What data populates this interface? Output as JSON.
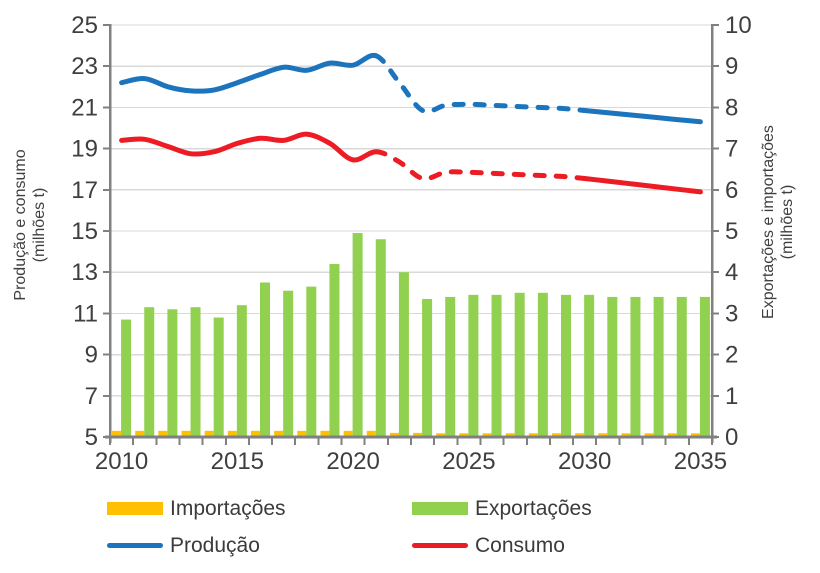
{
  "chart_data": {
    "type": "combo-bar-line",
    "x": [
      2010,
      2011,
      2012,
      2013,
      2014,
      2015,
      2016,
      2017,
      2018,
      2019,
      2020,
      2021,
      2022,
      2023,
      2024,
      2025,
      2026,
      2027,
      2028,
      2029,
      2030,
      2031,
      2032,
      2033,
      2034,
      2035
    ],
    "series": [
      {
        "name": "Importações",
        "type": "bar",
        "axis": "right",
        "color": "#FFC000",
        "values": [
          0.15,
          0.15,
          0.15,
          0.15,
          0.15,
          0.15,
          0.15,
          0.15,
          0.15,
          0.15,
          0.15,
          0.15,
          0.1,
          0.1,
          0.09,
          0.09,
          0.09,
          0.09,
          0.09,
          0.09,
          0.09,
          0.09,
          0.09,
          0.09,
          0.09,
          0.09
        ]
      },
      {
        "name": "Exportações",
        "type": "bar",
        "axis": "right",
        "color": "#92D050",
        "values": [
          2.85,
          3.15,
          3.1,
          3.15,
          2.9,
          3.2,
          3.75,
          3.55,
          3.65,
          4.2,
          4.95,
          4.8,
          4.0,
          3.35,
          3.4,
          3.45,
          3.45,
          3.5,
          3.5,
          3.45,
          3.45,
          3.4,
          3.4,
          3.4,
          3.4,
          3.4
        ]
      },
      {
        "name": "Produção",
        "type": "line",
        "axis": "left",
        "color": "#1C75BC",
        "values": [
          22.2,
          22.4,
          22.0,
          21.8,
          21.85,
          22.2,
          22.6,
          22.95,
          22.8,
          23.15,
          23.05,
          23.5,
          22.2,
          20.85,
          21.1,
          21.15,
          21.1,
          21.05,
          21.0,
          20.95,
          20.85,
          20.74,
          20.63,
          20.52,
          20.41,
          20.3
        ],
        "segments": [
          {
            "from": 2010,
            "to": 2021,
            "dashed": false
          },
          {
            "from": 2021,
            "to": 2030,
            "dashed": true
          },
          {
            "from": 2030,
            "to": 2035,
            "dashed": false
          }
        ]
      },
      {
        "name": "Consumo",
        "type": "line",
        "axis": "left",
        "color": "#ED1C24",
        "values": [
          19.4,
          19.45,
          19.1,
          18.75,
          18.85,
          19.25,
          19.5,
          19.4,
          19.7,
          19.25,
          18.45,
          18.85,
          18.35,
          17.55,
          17.85,
          17.85,
          17.8,
          17.75,
          17.7,
          17.65,
          17.55,
          17.42,
          17.29,
          17.16,
          17.03,
          16.9
        ],
        "segments": [
          {
            "from": 2010,
            "to": 2021,
            "dashed": false
          },
          {
            "from": 2021,
            "to": 2030,
            "dashed": true
          },
          {
            "from": 2030,
            "to": 2035,
            "dashed": false
          }
        ]
      }
    ],
    "left_axis": {
      "title": "Produção e consumo",
      "subtitle": "(milhões t)",
      "min": 5,
      "max": 25,
      "ticks": [
        25,
        23,
        21,
        19,
        17,
        15,
        13,
        11,
        9,
        7,
        5
      ]
    },
    "right_axis": {
      "title": "Exportações e importações",
      "subtitle": "(milhões t)",
      "min": 0,
      "max": 10,
      "ticks": [
        10,
        9,
        8,
        7,
        6,
        5,
        4,
        3,
        2,
        1,
        0
      ]
    },
    "x_axis": {
      "tick_labels": [
        "2010",
        "2015",
        "2020",
        "2025",
        "2030",
        "2035"
      ]
    },
    "grid": true,
    "legend_position": "bottom",
    "colors": {
      "grid": "#D9D9D9",
      "axis": "#808080",
      "tick_text": "#3f3f3f"
    }
  }
}
